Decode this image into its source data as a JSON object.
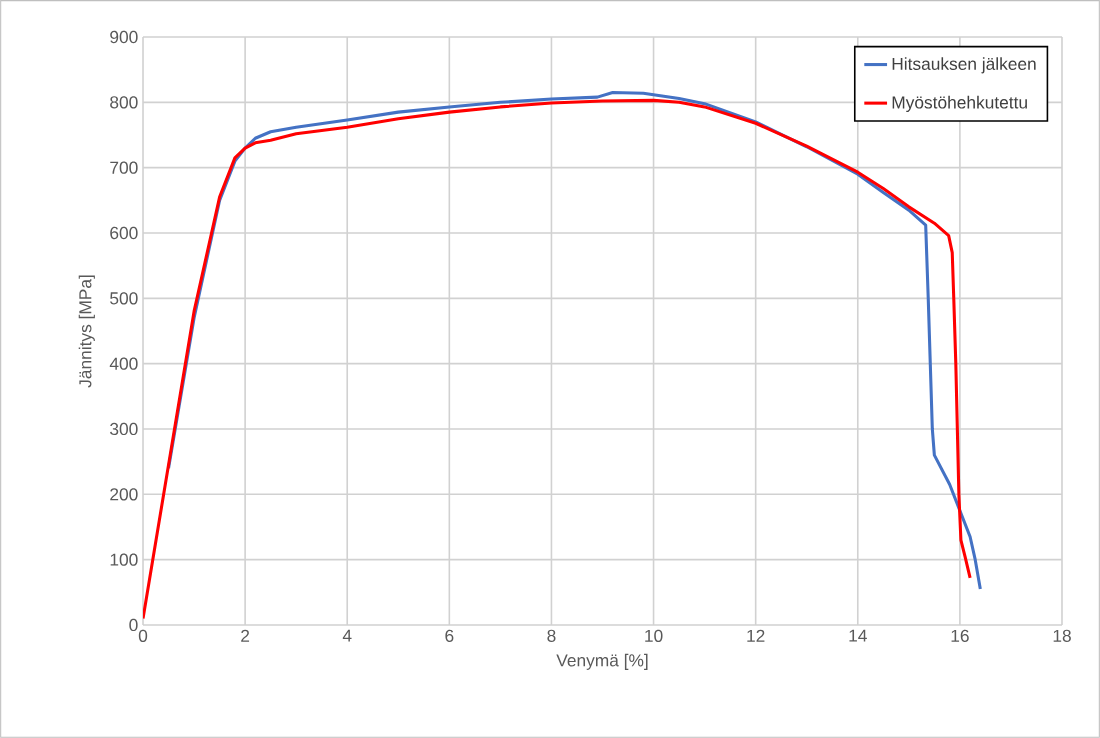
{
  "chart_data": {
    "type": "line",
    "xlabel": "Venymä [%]",
    "ylabel": "Jännitys [MPa]",
    "xlim": [
      0,
      18
    ],
    "ylim": [
      0,
      900
    ],
    "xticks": [
      0,
      2,
      4,
      6,
      8,
      10,
      12,
      14,
      16,
      18
    ],
    "yticks": [
      0,
      100,
      200,
      300,
      400,
      500,
      600,
      700,
      800,
      900
    ],
    "grid": true,
    "legend": "top right",
    "marker": "none",
    "line_style": "solid",
    "series": [
      {
        "name": "Hitsauksen jälkeen",
        "color": "#4472c4",
        "x": [
          0.5,
          1,
          1.5,
          1.8,
          2,
          2.2,
          2.5,
          3,
          4,
          5,
          6,
          7,
          8,
          8.9,
          9.2,
          9.8,
          10.5,
          11,
          12,
          13,
          14,
          14.5,
          15,
          15.33,
          15.38,
          15.42,
          15.46,
          15.5,
          15.8,
          16,
          16.2,
          16.3,
          16.4
        ],
        "values": [
          240,
          470,
          650,
          710,
          730,
          745,
          755,
          762,
          773,
          785,
          793,
          800,
          805,
          808,
          815,
          814,
          806,
          798,
          770,
          732,
          690,
          662,
          635,
          612,
          500,
          400,
          300,
          260,
          215,
          175,
          135,
          100,
          55
        ]
      },
      {
        "name": "Myöstöhehkutettu",
        "color": "#ff0000",
        "x": [
          0,
          0.5,
          1,
          1.5,
          1.8,
          2,
          2.2,
          2.5,
          3,
          4,
          5,
          6,
          7,
          8,
          9,
          10,
          10.5,
          11,
          12,
          13,
          14,
          14.5,
          15,
          15.5,
          15.78,
          15.85,
          15.88,
          15.92,
          15.95,
          15.98,
          16.02,
          16.1,
          16.2
        ],
        "values": [
          10,
          245,
          480,
          655,
          715,
          730,
          738,
          742,
          752,
          762,
          775,
          785,
          793,
          799,
          802,
          803,
          800,
          793,
          768,
          733,
          693,
          668,
          640,
          615,
          596,
          570,
          500,
          400,
          300,
          200,
          130,
          105,
          72
        ]
      }
    ]
  }
}
